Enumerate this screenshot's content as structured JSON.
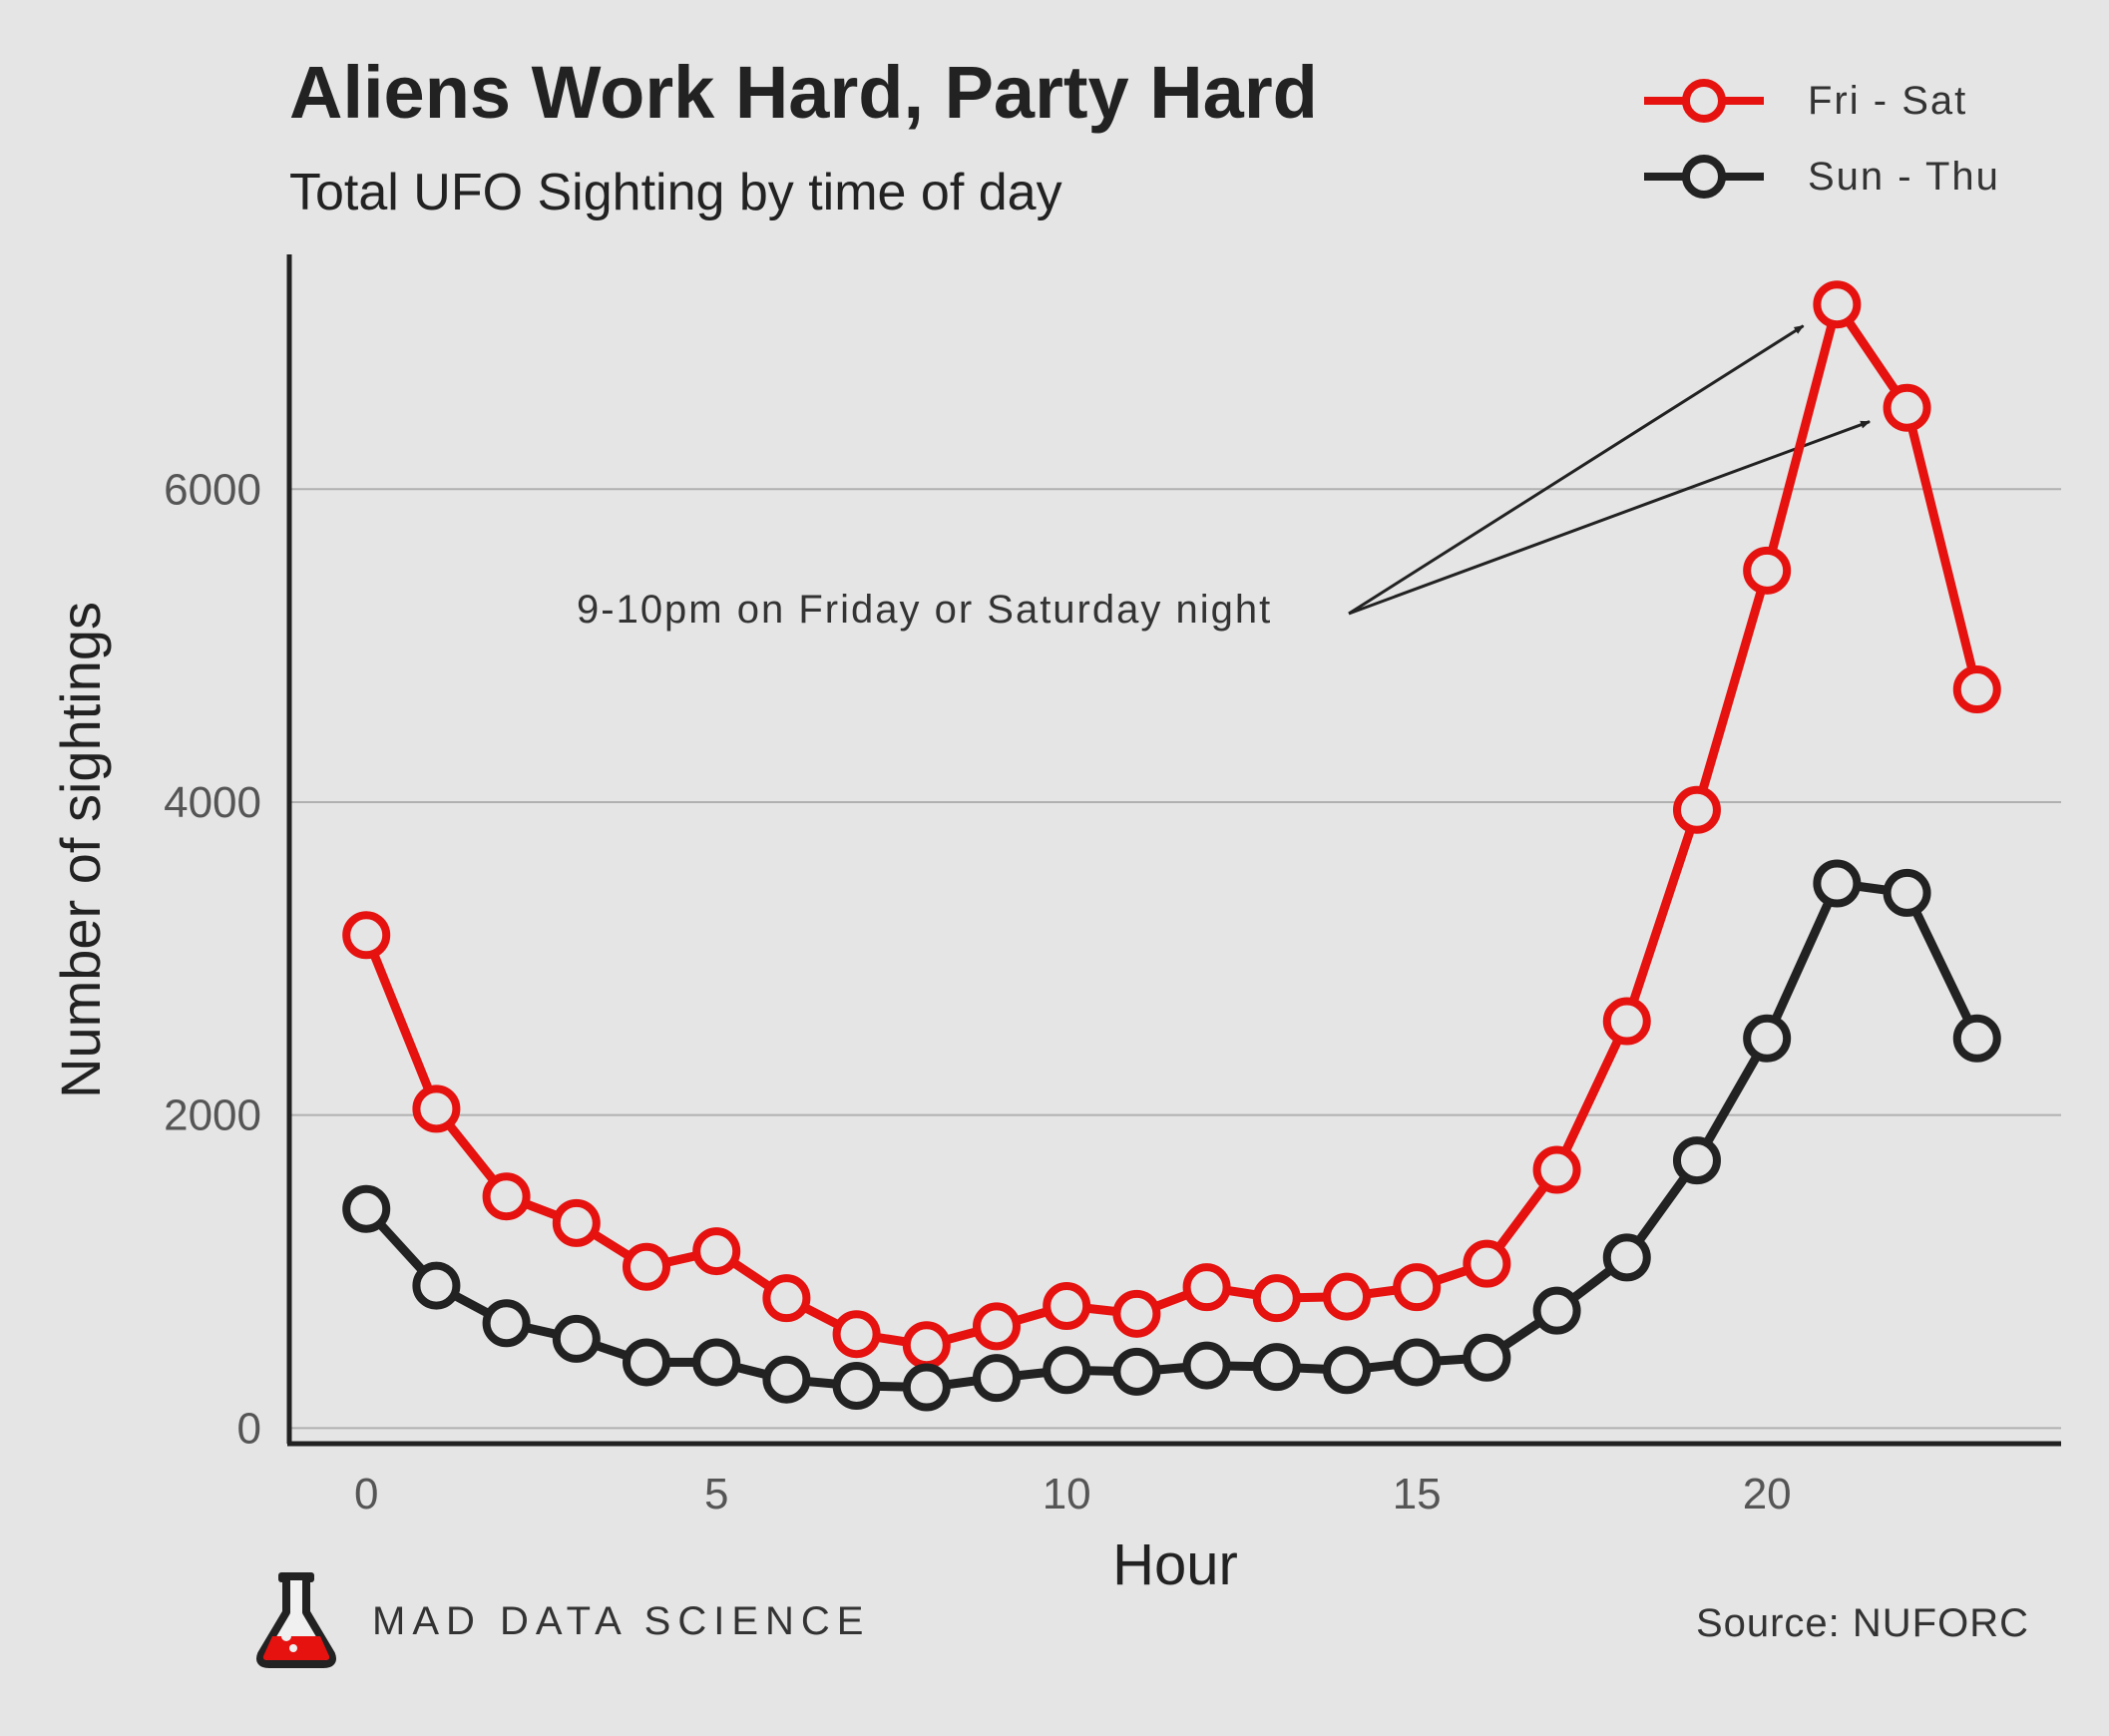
{
  "header": {
    "title": "Aliens Work Hard, Party Hard",
    "subtitle": "Total UFO Sighting by time of day"
  },
  "footer": {
    "brand": "MAD DATA SCIENCE",
    "source": "Source: NUFORC"
  },
  "colors": {
    "background": "#e5e5e5",
    "fri_sat": "#e5120f",
    "sun_thu": "#222222",
    "gridline": "#b0b0b0",
    "axis": "#222222",
    "tick_label": "#555555"
  },
  "icons": {
    "logo": "flask-icon"
  },
  "chart_data": {
    "type": "line",
    "title": "Aliens Work Hard, Party Hard",
    "subtitle": "Total UFO Sighting by time of day",
    "xlabel": "Hour",
    "ylabel": "Number of sightings",
    "xlim": [
      -1.1,
      24.2
    ],
    "ylim": [
      -100,
      7500
    ],
    "xticks": [
      0,
      5,
      10,
      15,
      20
    ],
    "yticks": [
      0,
      2000,
      4000,
      6000
    ],
    "xtick_labels": [
      "0",
      "5",
      "10",
      "15",
      "20"
    ],
    "ytick_labels": [
      "0",
      "2000",
      "4000",
      "6000"
    ],
    "grid": "horizontal",
    "legend_position": "top-right",
    "x": [
      0,
      1,
      2,
      3,
      4,
      5,
      6,
      7,
      8,
      9,
      10,
      11,
      12,
      13,
      14,
      15,
      16,
      17,
      18,
      19,
      20,
      21,
      22,
      23
    ],
    "series": [
      {
        "name": "Fri - Sat",
        "color": "#e5120f",
        "values": [
          3150,
          2040,
          1480,
          1310,
          1030,
          1130,
          830,
          600,
          530,
          650,
          780,
          730,
          900,
          830,
          840,
          900,
          1050,
          1650,
          2600,
          3950,
          5480,
          7180,
          6520,
          4720
        ]
      },
      {
        "name": "Sun - Thu",
        "color": "#222222",
        "values": [
          1400,
          910,
          670,
          570,
          420,
          420,
          310,
          270,
          260,
          320,
          370,
          360,
          400,
          390,
          370,
          420,
          450,
          750,
          1090,
          1710,
          2490,
          3480,
          3420,
          2490
        ]
      }
    ],
    "annotations": [
      {
        "text": "9-10pm on Friday or Saturday night",
        "points_to": [
          {
            "x": 21,
            "series": "Fri - Sat"
          },
          {
            "x": 22,
            "series": "Fri - Sat"
          }
        ]
      }
    ]
  }
}
